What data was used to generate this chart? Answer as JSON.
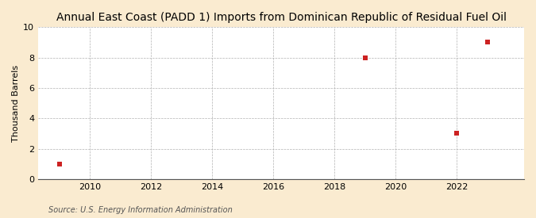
{
  "title": "Annual East Coast (PADD 1) Imports from Dominican Republic of Residual Fuel Oil",
  "ylabel": "Thousand Barrels",
  "source": "Source: U.S. Energy Information Administration",
  "x_data": [
    2009,
    2019,
    2022,
    2023
  ],
  "y_data": [
    1,
    8,
    3,
    9
  ],
  "marker_color": "#cc2222",
  "marker": "s",
  "marker_size": 16,
  "xlim": [
    2008.3,
    2024.2
  ],
  "ylim": [
    0,
    10
  ],
  "xticks": [
    2010,
    2012,
    2014,
    2016,
    2018,
    2020,
    2022
  ],
  "yticks": [
    0,
    2,
    4,
    6,
    8,
    10
  ],
  "figure_bg": "#faebd0",
  "plot_bg": "#ffffff",
  "grid_color": "#aaaaaa",
  "title_fontsize": 10,
  "label_fontsize": 8,
  "tick_fontsize": 8,
  "source_fontsize": 7
}
